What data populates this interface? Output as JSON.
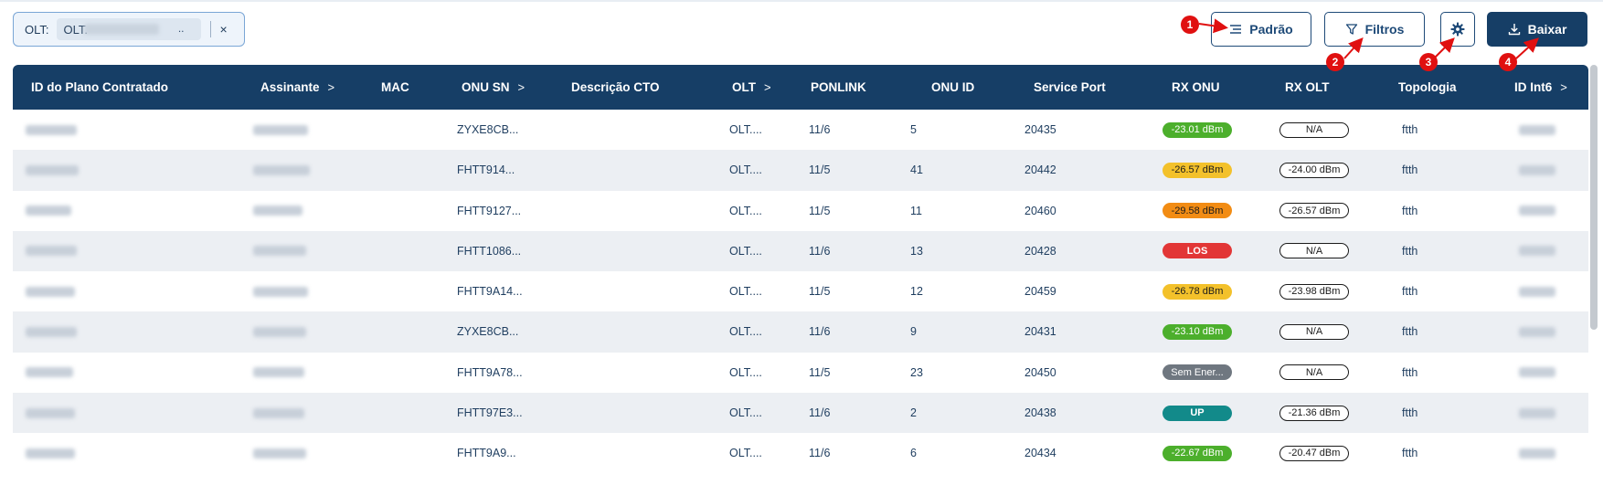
{
  "filter_chip": {
    "label": "OLT:",
    "value": "OLT.",
    "ellipsis": "..",
    "close": "×"
  },
  "toolbar": {
    "padrao_label": "Padrão",
    "filtros_label": "Filtros",
    "baixar_label": "Baixar",
    "settings_icon": "gear-icon"
  },
  "annotations": [
    "1",
    "2",
    "3",
    "4"
  ],
  "table": {
    "columns": [
      {
        "label": "ID do Plano Contratado",
        "sortable": false
      },
      {
        "label": "Assinante",
        "sortable": true
      },
      {
        "label": "MAC",
        "sortable": false
      },
      {
        "label": "ONU SN",
        "sortable": true
      },
      {
        "label": "Descrição CTO",
        "sortable": false
      },
      {
        "label": "OLT",
        "sortable": true
      },
      {
        "label": "PONLINK",
        "sortable": false
      },
      {
        "label": "ONU ID",
        "sortable": false
      },
      {
        "label": "Service Port",
        "sortable": false
      },
      {
        "label": "RX ONU",
        "sortable": false
      },
      {
        "label": "RX OLT",
        "sortable": false
      },
      {
        "label": "Topologia",
        "sortable": false
      },
      {
        "label": "ID Int6",
        "sortable": true
      }
    ],
    "chevron": ">",
    "rows": [
      {
        "onu_sn": "ZYXE8CB...",
        "olt": "OLT....",
        "ponlink": "11/6",
        "onu_id": "5",
        "service_port": "20435",
        "rx_onu": "-23.01 dBm",
        "rx_onu_status": "green",
        "rx_olt": "N/A",
        "topologia": "ftth"
      },
      {
        "onu_sn": "FHTT914...",
        "olt": "OLT....",
        "ponlink": "11/5",
        "onu_id": "41",
        "service_port": "20442",
        "rx_onu": "-26.57 dBm",
        "rx_onu_status": "yellow",
        "rx_olt": "-24.00 dBm",
        "topologia": "ftth"
      },
      {
        "onu_sn": "FHTT9127...",
        "olt": "OLT....",
        "ponlink": "11/5",
        "onu_id": "11",
        "service_port": "20460",
        "rx_onu": "-29.58 dBm",
        "rx_onu_status": "orange",
        "rx_olt": "-26.57 dBm",
        "topologia": "ftth"
      },
      {
        "onu_sn": "FHTT1086...",
        "olt": "OLT....",
        "ponlink": "11/6",
        "onu_id": "13",
        "service_port": "20428",
        "rx_onu": "LOS",
        "rx_onu_status": "red",
        "rx_olt": "N/A",
        "topologia": "ftth"
      },
      {
        "onu_sn": "FHTT9A14...",
        "olt": "OLT....",
        "ponlink": "11/5",
        "onu_id": "12",
        "service_port": "20459",
        "rx_onu": "-26.78 dBm",
        "rx_onu_status": "yellow",
        "rx_olt": "-23.98 dBm",
        "topologia": "ftth"
      },
      {
        "onu_sn": "ZYXE8CB...",
        "olt": "OLT....",
        "ponlink": "11/6",
        "onu_id": "9",
        "service_port": "20431",
        "rx_onu": "-23.10 dBm",
        "rx_onu_status": "green",
        "rx_olt": "N/A",
        "topologia": "ftth"
      },
      {
        "onu_sn": "FHTT9A78...",
        "olt": "OLT....",
        "ponlink": "11/5",
        "onu_id": "23",
        "service_port": "20450",
        "rx_onu": "Sem Ener...",
        "rx_onu_status": "gray",
        "rx_olt": "N/A",
        "topologia": "ftth"
      },
      {
        "onu_sn": "FHTT97E3...",
        "olt": "OLT....",
        "ponlink": "11/6",
        "onu_id": "2",
        "service_port": "20438",
        "rx_onu": "UP",
        "rx_onu_status": "teal",
        "rx_olt": "-21.36 dBm",
        "topologia": "ftth"
      },
      {
        "onu_sn": "FHTT9A9...",
        "olt": "OLT....",
        "ponlink": "11/6",
        "onu_id": "6",
        "service_port": "20434",
        "rx_onu": "-22.67 dBm",
        "rx_onu_status": "green",
        "rx_olt": "-20.47 dBm",
        "topologia": "ftth"
      }
    ]
  },
  "colors": {
    "header_bg": "#163e66",
    "annotation": "#e01010",
    "status_green": "#4caf2c",
    "status_yellow": "#f3c12b",
    "status_orange": "#f28c14",
    "status_red": "#e23636",
    "status_gray": "#6f7780",
    "status_teal": "#128a8a"
  }
}
